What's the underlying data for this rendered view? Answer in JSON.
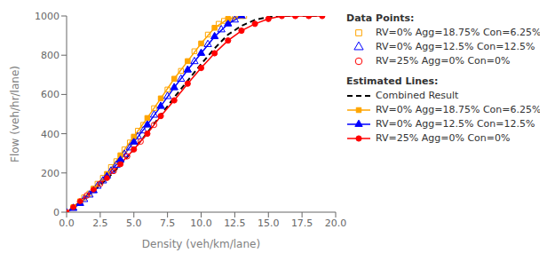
{
  "chart_data": {
    "type": "line",
    "xlabel": "Density (veh/km/lane)",
    "ylabel": "Flow (veh/hr/lane)",
    "xlim": [
      0,
      20
    ],
    "ylim": [
      0,
      1000
    ],
    "xticks": [
      {
        "value": 0,
        "label": "0.0"
      },
      2.5,
      {
        "value": 5,
        "label": "5.0"
      },
      7.5,
      {
        "value": 10,
        "label": "10.0"
      },
      12.5,
      {
        "value": 15,
        "label": "15.0"
      },
      17.5,
      {
        "value": 20,
        "label": "20.0"
      }
    ],
    "yticks": [
      0,
      200,
      400,
      600,
      800,
      1000
    ],
    "grid": false,
    "legend": "right",
    "legend_titles": [
      "Data Points:",
      "Estimated Lines:"
    ],
    "series": [
      {
        "name": "RV=0% Agg=18.75% Con=6.25%",
        "type": "scatter",
        "color": "#FFA500",
        "marker": "square",
        "x": [
          0.5,
          1.0,
          1.3,
          1.7,
          2.0,
          2.3,
          2.7,
          3.0,
          3.3,
          3.7,
          4.0,
          4.3,
          4.7,
          5.0,
          5.3,
          5.7,
          6.0,
          6.5,
          7.0,
          7.5,
          8.0,
          8.5,
          9.0,
          9.5,
          10.0,
          10.5,
          11.0,
          11.3,
          11.7,
          12.0,
          12.3,
          12.5,
          12.8,
          13.0,
          13.2
        ],
        "values": [
          25,
          55,
          75,
          95,
          120,
          145,
          175,
          195,
          230,
          260,
          290,
          320,
          355,
          385,
          415,
          445,
          480,
          530,
          580,
          625,
          680,
          720,
          770,
          820,
          860,
          905,
          940,
          960,
          975,
          985,
          995,
          1000,
          1000,
          1000,
          1000
        ]
      },
      {
        "name": "RV=0% Agg=12.5% Con=12.5%",
        "type": "scatter",
        "color": "#0000FF",
        "marker": "triangle",
        "x": [
          0.5,
          1.0,
          1.3,
          1.7,
          2.0,
          2.3,
          2.7,
          3.0,
          3.3,
          3.7,
          4.0,
          4.3,
          4.7,
          5.0,
          5.3,
          5.7,
          6.0,
          6.5,
          7.0,
          7.5,
          8.0,
          8.5,
          9.0,
          9.5,
          10.0,
          10.5,
          11.0,
          11.5,
          12.0,
          12.5,
          13.0
        ],
        "values": [
          20,
          45,
          65,
          88,
          110,
          133,
          160,
          185,
          210,
          240,
          268,
          295,
          328,
          358,
          385,
          415,
          445,
          495,
          540,
          590,
          635,
          678,
          725,
          768,
          810,
          855,
          895,
          930,
          960,
          980,
          1000
        ]
      },
      {
        "name": "RV=25% Agg=0% Con=0%",
        "type": "scatter",
        "color": "#FF0000",
        "marker": "circle",
        "x": [
          0.5,
          1.0,
          1.5,
          2.0,
          2.5,
          3.0,
          3.5,
          4.0,
          4.5,
          5.0,
          5.5,
          6.0,
          6.5,
          7.0,
          8.0,
          9.0,
          10.0,
          11.0,
          12.0,
          13.0,
          14.0,
          15.0,
          16.0,
          17.0,
          18.0,
          19.0
        ],
        "values": [
          25,
          55,
          85,
          115,
          145,
          175,
          210,
          245,
          285,
          320,
          360,
          400,
          445,
          490,
          570,
          655,
          735,
          810,
          875,
          925,
          960,
          985,
          1000,
          1000,
          1000,
          1000
        ]
      },
      {
        "name": "Combined Result",
        "type": "line",
        "color": "#000000",
        "line_style": "dashed",
        "x": [
          0,
          0.5,
          1.0,
          2.0,
          3.0,
          4.0,
          5.0,
          6.0,
          7.0,
          8.0,
          9.0,
          10.0,
          11.0,
          12.0,
          13.0,
          14.0,
          15.0,
          16.0,
          17.0,
          18.0,
          19.0
        ],
        "values": [
          0,
          25,
          52,
          108,
          170,
          240,
          320,
          405,
          495,
          585,
          670,
          755,
          835,
          905,
          950,
          980,
          995,
          1000,
          1000,
          1000,
          1000
        ]
      },
      {
        "name": "RV=0% Agg=18.75% Con=6.25%",
        "type": "line",
        "color": "#FFA500",
        "marker": "square",
        "line_style": "solid",
        "x": [
          0,
          0.5,
          1.0,
          2.0,
          3.0,
          4.0,
          5.0,
          6.0,
          7.0,
          8.0,
          9.0,
          10.0,
          11.0,
          12.0,
          13.0
        ],
        "values": [
          0,
          25,
          55,
          120,
          195,
          290,
          385,
          480,
          580,
          680,
          770,
          860,
          940,
          985,
          1000
        ]
      },
      {
        "name": "RV=0% Agg=12.5% Con=12.5%",
        "type": "line",
        "color": "#0000FF",
        "marker": "triangle",
        "line_style": "solid",
        "x": [
          0,
          0.5,
          1.0,
          2.0,
          3.0,
          4.0,
          5.0,
          6.0,
          7.0,
          8.0,
          9.0,
          10.0,
          11.0,
          12.0,
          13.0
        ],
        "values": [
          0,
          20,
          45,
          110,
          185,
          268,
          358,
          445,
          540,
          635,
          725,
          810,
          895,
          960,
          1000
        ]
      },
      {
        "name": "RV=25% Agg=0% Con=0%",
        "type": "line",
        "color": "#FF0000",
        "marker": "circle",
        "line_style": "solid",
        "x": [
          0,
          0.5,
          1.0,
          2.0,
          3.0,
          4.0,
          5.0,
          6.0,
          7.0,
          8.0,
          9.0,
          10.0,
          11.0,
          12.0,
          13.0,
          14.0,
          15.0,
          16.0,
          17.0,
          18.0,
          19.0
        ],
        "values": [
          0,
          25,
          55,
          115,
          175,
          245,
          320,
          400,
          490,
          570,
          655,
          735,
          810,
          875,
          925,
          960,
          985,
          1000,
          1000,
          1000,
          1000
        ]
      }
    ]
  }
}
